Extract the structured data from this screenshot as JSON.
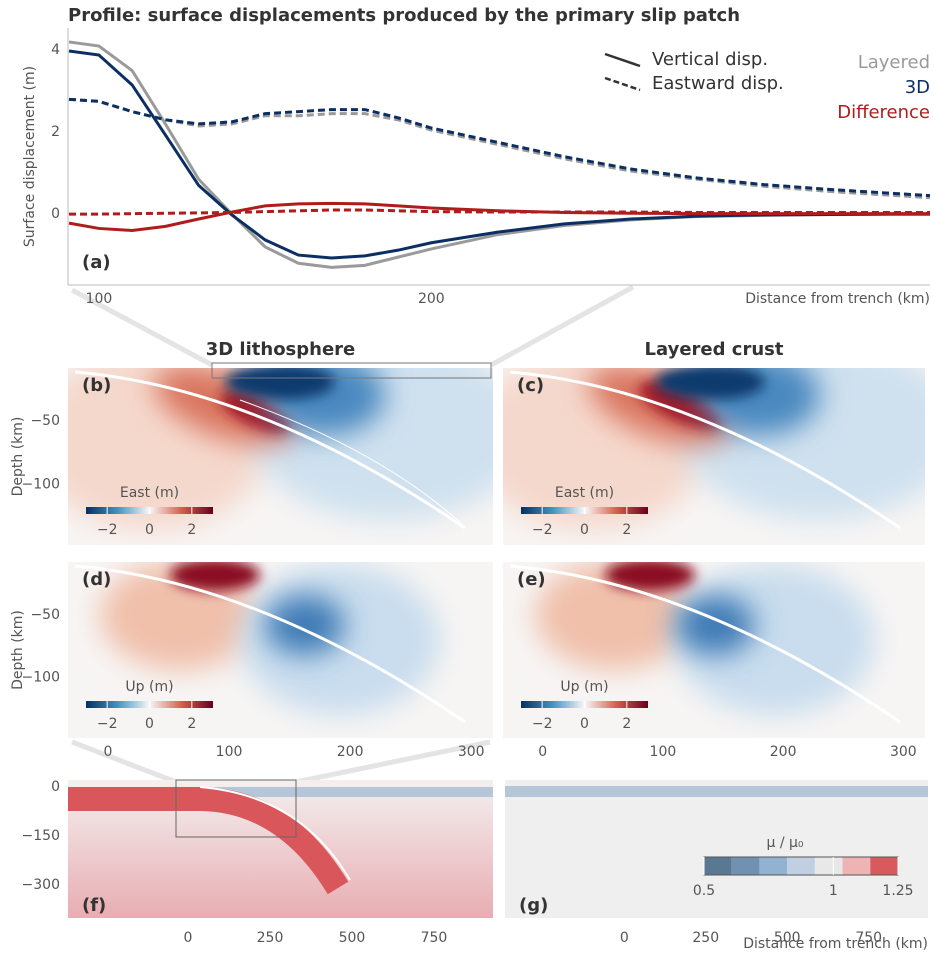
{
  "chart_data": [
    {
      "type": "line",
      "title": "Profile: surface displacements produced by the primary slip patch",
      "panel_label": "(a)",
      "xlabel": "Distance from trench (km)",
      "ylabel": "Surface displacement (m)",
      "xlim": [
        90.7,
        350
      ],
      "ylim": [
        -1.73,
        4.54
      ],
      "xticks": [
        100,
        200
      ],
      "yticks": [
        0,
        2,
        4
      ],
      "line_styles": [
        {
          "label": "Vertical disp.",
          "dash": false
        },
        {
          "label": "Eastward disp.",
          "dash": true
        }
      ],
      "colors": [
        {
          "label": "Layered",
          "color": "#9a9a9a"
        },
        {
          "label": "3D",
          "color": "#0c2f63"
        },
        {
          "label": "Difference",
          "color": "#b01c1c"
        }
      ],
      "x": [
        91,
        100,
        110,
        120,
        130,
        140,
        150,
        160,
        170,
        180,
        190,
        200,
        220,
        240,
        260,
        280,
        300,
        320,
        340,
        350
      ],
      "series": [
        {
          "color": "#9a9a9a",
          "dash": false,
          "values": [
            4.2,
            4.1,
            3.5,
            2.2,
            0.85,
            0,
            -0.8,
            -1.2,
            -1.3,
            -1.25,
            -1.05,
            -0.85,
            -0.5,
            -0.28,
            -0.14,
            -0.06,
            -0.03,
            -0.01,
            0,
            0
          ]
        },
        {
          "color": "#0c2f63",
          "dash": false,
          "values": [
            3.98,
            3.88,
            3.15,
            1.93,
            0.7,
            -0.02,
            -0.63,
            -1.0,
            -1.07,
            -1.02,
            -0.88,
            -0.7,
            -0.44,
            -0.24,
            -0.12,
            -0.05,
            -0.02,
            -0.01,
            0,
            0
          ]
        },
        {
          "color": "#9a9a9a",
          "dash": true,
          "values": [
            2.8,
            2.75,
            2.5,
            2.3,
            2.15,
            2.2,
            2.4,
            2.4,
            2.45,
            2.45,
            2.3,
            2.05,
            1.7,
            1.35,
            1.05,
            0.85,
            0.68,
            0.55,
            0.45,
            0.4
          ]
        },
        {
          "color": "#0c2f63",
          "dash": true,
          "values": [
            2.8,
            2.75,
            2.5,
            2.3,
            2.2,
            2.25,
            2.45,
            2.5,
            2.55,
            2.55,
            2.35,
            2.1,
            1.75,
            1.4,
            1.1,
            0.88,
            0.72,
            0.6,
            0.5,
            0.45
          ]
        },
        {
          "color": "#b01c1c",
          "dash": false,
          "values": [
            -0.22,
            -0.35,
            -0.4,
            -0.3,
            -0.12,
            0.05,
            0.2,
            0.25,
            0.26,
            0.25,
            0.2,
            0.15,
            0.08,
            0.04,
            0.02,
            0.01,
            0.01,
            0.01,
            0.01,
            0.01
          ]
        },
        {
          "color": "#b01c1c",
          "dash": true,
          "values": [
            0,
            0,
            0.01,
            0.02,
            0.03,
            0.04,
            0.06,
            0.08,
            0.1,
            0.1,
            0.08,
            0.06,
            0.05,
            0.05,
            0.05,
            0.04,
            0.04,
            0.04,
            0.04,
            0.04
          ]
        }
      ]
    },
    {
      "type": "heatmap",
      "panel_label": "(b)",
      "title": "3D lithosphere",
      "ylabel": "Depth (km)",
      "xlim": [
        -33,
        318
      ],
      "ylim": [
        -148,
        -8
      ],
      "yticks": [
        {
          "value": -50,
          "label": "−50"
        },
        {
          "value": -100,
          "label": "−100"
        }
      ],
      "colorbar": {
        "label": "East (m)",
        "clim": [
          -3,
          3
        ],
        "ticks": [
          {
            "value": -2,
            "label": "−2"
          },
          0,
          2
        ],
        "colors": [
          "#053061",
          "#4393c3",
          "#f7f7f7",
          "#d6604d",
          "#67001f"
        ]
      }
    },
    {
      "type": "heatmap",
      "panel_label": "(c)",
      "title": "Layered crust",
      "xlim": [
        -33,
        318
      ],
      "ylim": [
        -148,
        -8
      ],
      "colorbar": {
        "label": "East (m)",
        "clim": [
          -3,
          3
        ],
        "ticks": [
          {
            "value": -2,
            "label": "−2"
          },
          0,
          2
        ],
        "colors": [
          "#053061",
          "#4393c3",
          "#f7f7f7",
          "#d6604d",
          "#67001f"
        ]
      }
    },
    {
      "type": "heatmap",
      "panel_label": "(d)",
      "ylabel": "Depth (km)",
      "xlim": [
        -33,
        318
      ],
      "ylim": [
        -148,
        -8
      ],
      "xticks": [
        0,
        100,
        200,
        300
      ],
      "yticks": [
        {
          "value": -50,
          "label": "−50"
        },
        {
          "value": -100,
          "label": "−100"
        }
      ],
      "colorbar": {
        "label": "Up (m)",
        "clim": [
          -3,
          3
        ],
        "ticks": [
          {
            "value": -2,
            "label": "−2"
          },
          0,
          2
        ],
        "colors": [
          "#053061",
          "#4393c3",
          "#f7f7f7",
          "#d6604d",
          "#67001f"
        ]
      }
    },
    {
      "type": "heatmap",
      "panel_label": "(e)",
      "xlim": [
        -33,
        318
      ],
      "ylim": [
        -148,
        -8
      ],
      "xticks": [
        0,
        100,
        200,
        300
      ],
      "colorbar": {
        "label": "Up (m)",
        "clim": [
          -3,
          3
        ],
        "ticks": [
          {
            "value": -2,
            "label": "−2"
          },
          0,
          2
        ],
        "colors": [
          "#053061",
          "#4393c3",
          "#f7f7f7",
          "#d6604d",
          "#67001f"
        ]
      }
    },
    {
      "type": "map",
      "panel_label": "(f)",
      "xlim": [
        -366,
        930
      ],
      "ylim": [
        -400,
        21
      ],
      "xticks": [
        0,
        250,
        500,
        750
      ],
      "yticks": [
        0,
        {
          "value": -150,
          "label": "−150"
        },
        {
          "value": -300,
          "label": "−300"
        }
      ]
    },
    {
      "type": "map",
      "panel_label": "(g)",
      "xlabel": "Distance from trench (km)",
      "xlim": [
        -366,
        932
      ],
      "ylim": [
        -400,
        21
      ],
      "xticks": [
        0,
        250,
        500,
        750
      ],
      "colorbar": {
        "label": "μ / μ₀",
        "clim": [
          0.5,
          1.25
        ],
        "ticks": [
          0.5,
          1,
          1.25
        ],
        "colors": [
          "#5b7893",
          "#7091b1",
          "#93b2d1",
          "#c0d0e2",
          "#e8e8e8",
          "#eeb4b4",
          "#d95a5c"
        ]
      }
    }
  ]
}
